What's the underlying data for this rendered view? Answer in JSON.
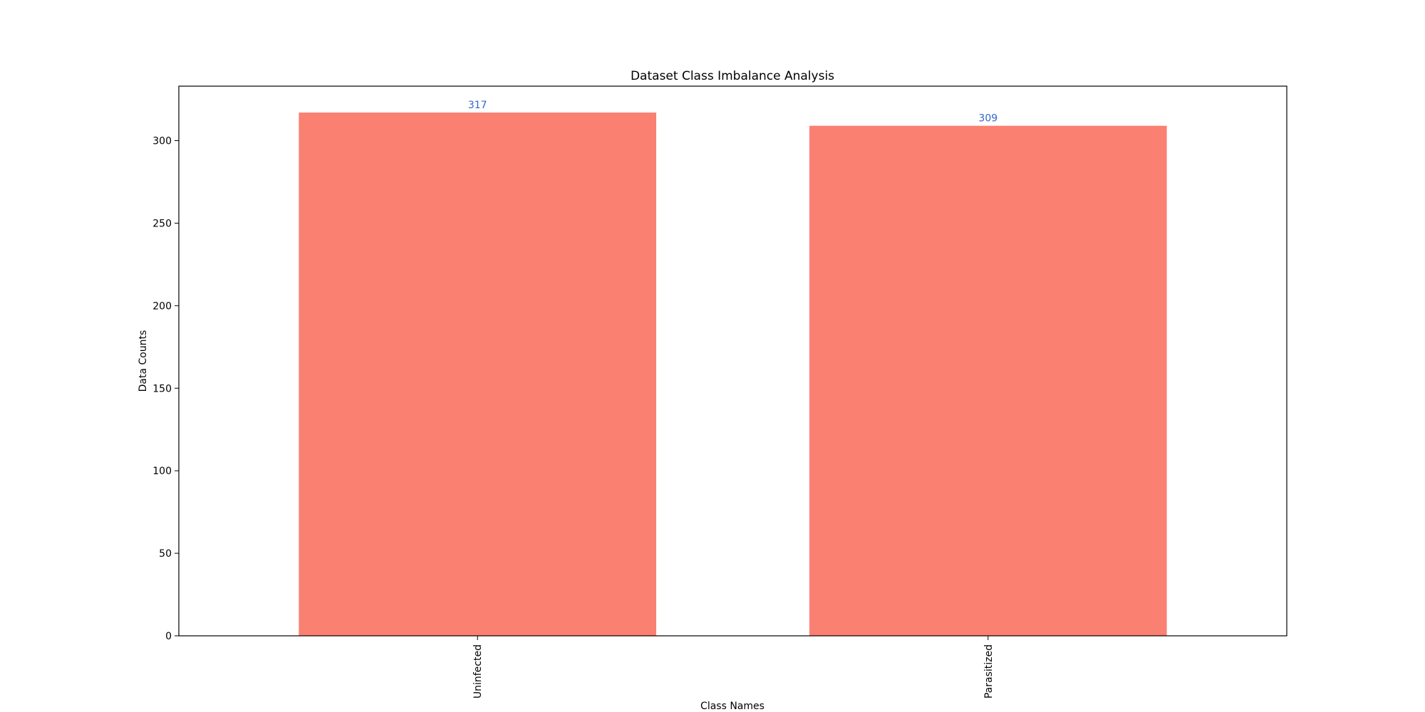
{
  "chart_data": {
    "type": "bar",
    "title": "Dataset Class Imbalance Analysis",
    "xlabel": "Class Names",
    "ylabel": "Data Counts",
    "categories": [
      "Uninfected",
      "Parasitized"
    ],
    "values": [
      317,
      309
    ],
    "data_labels": [
      "317",
      "309"
    ],
    "ylim": [
      0,
      333
    ],
    "yticks": [
      0,
      50,
      100,
      150,
      200,
      250,
      300
    ],
    "ytick_labels": [
      "0",
      "50",
      "100",
      "150",
      "200",
      "250",
      "300"
    ],
    "grid": false,
    "x_tick_rotation": "vertical",
    "colors": {
      "bar": "#fa8072",
      "data_label": "#3366cc",
      "axis": "#000000"
    }
  }
}
